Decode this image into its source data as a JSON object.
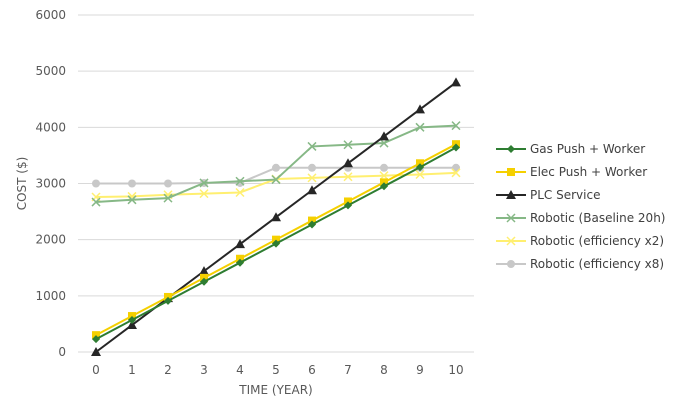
{
  "chart_data": {
    "type": "line",
    "xlabel": "TIME (YEAR)",
    "ylabel": "COST ($)",
    "x": [
      0,
      1,
      2,
      3,
      4,
      5,
      6,
      7,
      8,
      9,
      10
    ],
    "ylim": [
      0,
      6000
    ],
    "yticks": [
      0,
      1000,
      2000,
      3000,
      4000,
      5000,
      6000
    ],
    "grid": "horizontal",
    "legend": "right",
    "series": [
      {
        "name": "Gas Push + Worker",
        "color": "#2e7d32",
        "marker": "diamond",
        "values": [
          230,
          570,
          910,
          1250,
          1590,
          1930,
          2270,
          2610,
          2950,
          3290,
          3640
        ]
      },
      {
        "name": "Elec Push + Worker",
        "color": "#f5d000",
        "marker": "square",
        "values": [
          300,
          640,
          980,
          1320,
          1660,
          2000,
          2340,
          2680,
          3020,
          3360,
          3700
        ]
      },
      {
        "name": "PLC Service",
        "color": "#262626",
        "marker": "triangle",
        "values": [
          0,
          480,
          960,
          1440,
          1920,
          2400,
          2880,
          3360,
          3840,
          4320,
          4800
        ]
      },
      {
        "name": "Robotic (Baseline 20h)",
        "color": "#86b886",
        "marker": "x",
        "values": [
          2670,
          2710,
          2740,
          3010,
          3040,
          3070,
          3660,
          3690,
          3720,
          4000,
          4030
        ]
      },
      {
        "name": "Robotic (efficiency x2)",
        "color": "#ffef70",
        "marker": "x",
        "values": [
          2760,
          2770,
          2800,
          2820,
          2840,
          3080,
          3100,
          3120,
          3140,
          3160,
          3190
        ]
      },
      {
        "name": "Robotic (efficiency x8)",
        "color": "#c8c8c8",
        "marker": "circle",
        "values": [
          3000,
          3000,
          3000,
          3010,
          3010,
          3280,
          3280,
          3280,
          3280,
          3280,
          3280
        ]
      }
    ]
  }
}
